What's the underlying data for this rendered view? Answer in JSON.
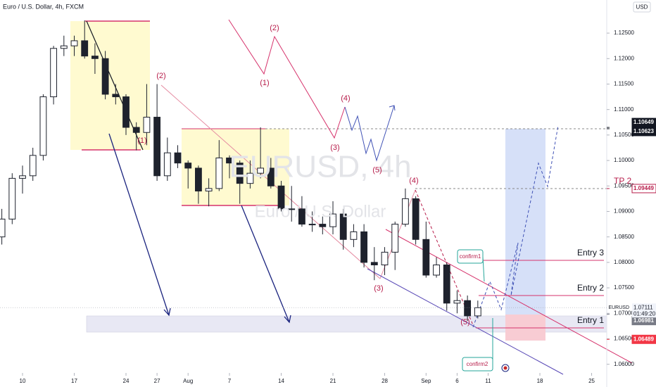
{
  "chart_data": {
    "type": "candlestick",
    "title": "Euro / U.S. Dollar, 4h, FXCM",
    "watermark": "EURUSD, 4h",
    "watermark_subtitle": "Euro / U.S. Dollar",
    "currency": "USD",
    "up_color": "#ffffff",
    "down_color": "#1e222d",
    "xlim": [
      -0.177,
      58.46
    ],
    "ylim": [
      1.0583,
      1.1315
    ],
    "xticks": [
      {
        "value": 2,
        "label": "10"
      },
      {
        "value": 7,
        "label": "17"
      },
      {
        "value": 12,
        "label": "24"
      },
      {
        "value": 15,
        "label": "27"
      },
      {
        "value": 18,
        "label": "Aug"
      },
      {
        "value": 22,
        "label": "7"
      },
      {
        "value": 27,
        "label": "14"
      },
      {
        "value": 32,
        "label": "21"
      },
      {
        "value": 37,
        "label": "28"
      },
      {
        "value": 41,
        "label": "Sep"
      },
      {
        "value": 44,
        "label": "6"
      },
      {
        "value": 47,
        "label": "11"
      },
      {
        "value": 52,
        "label": "18"
      },
      {
        "value": 57,
        "label": "25"
      }
    ],
    "yticks": [
      {
        "value": 1.06,
        "label": "1.06000"
      },
      {
        "value": 1.065,
        "label": "1.06500"
      },
      {
        "value": 1.07,
        "label": "1.07000"
      },
      {
        "value": 1.075,
        "label": "1.07500"
      },
      {
        "value": 1.08,
        "label": "1.08000"
      },
      {
        "value": 1.085,
        "label": "1.08500"
      },
      {
        "value": 1.09,
        "label": "1.09000"
      },
      {
        "value": 1.095,
        "label": "1.09500"
      },
      {
        "value": 1.1,
        "label": "1.10000"
      },
      {
        "value": 1.105,
        "label": "1.10500"
      },
      {
        "value": 1.11,
        "label": "1.11000"
      },
      {
        "value": 1.115,
        "label": "1.11500"
      },
      {
        "value": 1.12,
        "label": "1.12000"
      },
      {
        "value": 1.125,
        "label": "1.12500"
      }
    ],
    "open": [
      1.085,
      1.0885,
      1.0965,
      1.097,
      1.101,
      1.1125,
      1.122,
      1.1225,
      1.1235,
      1.1205,
      1.12,
      1.113,
      1.1125,
      1.1065,
      1.1055,
      1.1085,
      1.097,
      1.1015,
      1.0995,
      1.0985,
      1.094,
      1.0945,
      1.1005,
      1.0995,
      1.0955,
      1.0975,
      1.0985,
      1.095,
      1.0905,
      1.0905,
      1.0875,
      1.0875,
      1.087,
      1.0895,
      1.0845,
      1.086,
      1.08,
      1.0795,
      1.082,
      1.0875,
      1.0925,
      1.0845,
      1.0775,
      1.0795,
      1.072,
      1.0725,
      1.0695
    ],
    "high": [
      1.0905,
      1.0975,
      1.099,
      1.1025,
      1.113,
      1.1225,
      1.1245,
      1.1245,
      1.1275,
      1.123,
      1.1215,
      1.115,
      1.113,
      1.1075,
      1.115,
      1.115,
      1.1045,
      1.103,
      1.1,
      1.099,
      1.0965,
      1.104,
      1.101,
      1.1,
      1.1,
      1.1065,
      1.1005,
      1.096,
      1.095,
      1.093,
      1.09,
      1.089,
      1.092,
      1.0905,
      1.0875,
      1.0875,
      1.083,
      1.083,
      1.088,
      1.0945,
      1.093,
      1.088,
      1.081,
      1.08,
      1.0745,
      1.0735,
      1.0725
    ],
    "low": [
      1.0835,
      1.0875,
      1.0935,
      1.096,
      1.1,
      1.111,
      1.1205,
      1.1205,
      1.12,
      1.117,
      1.112,
      1.111,
      1.105,
      1.102,
      1.103,
      1.096,
      1.096,
      1.0985,
      1.0945,
      1.0915,
      1.091,
      1.094,
      1.0965,
      1.0915,
      1.0945,
      1.0965,
      1.0945,
      1.09,
      1.088,
      1.087,
      1.086,
      1.0855,
      1.0855,
      1.0825,
      1.083,
      1.079,
      1.0765,
      1.0775,
      1.0785,
      1.087,
      1.0835,
      1.077,
      1.077,
      1.0705,
      1.07,
      1.0685,
      1.069
    ],
    "close": [
      1.0885,
      1.0965,
      1.097,
      1.101,
      1.1125,
      1.122,
      1.1225,
      1.1235,
      1.1205,
      1.12,
      1.113,
      1.1125,
      1.1065,
      1.1055,
      1.1085,
      1.097,
      1.1015,
      1.0995,
      1.0985,
      1.094,
      1.0945,
      1.1005,
      1.0995,
      1.0955,
      1.0975,
      1.0985,
      1.095,
      1.0905,
      1.0905,
      1.0875,
      1.0875,
      1.087,
      1.0895,
      1.0845,
      1.086,
      1.08,
      1.0795,
      1.082,
      1.0875,
      1.0925,
      1.0845,
      1.0775,
      1.0795,
      1.072,
      1.0725,
      1.0695,
      1.0711
    ],
    "price_tags": [
      1.10649,
      1.10623,
      1.09449,
      1.06981,
      1.06489
    ],
    "price_tag_colors": [
      "#131722",
      "#131722",
      "#ffffff",
      "#787b86",
      "#f23645"
    ],
    "current": {
      "symbol": "EURUSD",
      "price": 1.07111,
      "countdown": "01:49:20"
    },
    "wave_labels": [
      "(2)",
      "(1)",
      "(4)",
      "(3)",
      "(5)",
      "(2)",
      "(1)",
      "(4)",
      "(3)",
      "(5)"
    ],
    "level_labels": [
      "TP 2",
      "Entry 3",
      "Entry 2",
      "Entry 1"
    ],
    "callouts": [
      "confirm1",
      "confirm2"
    ]
  }
}
